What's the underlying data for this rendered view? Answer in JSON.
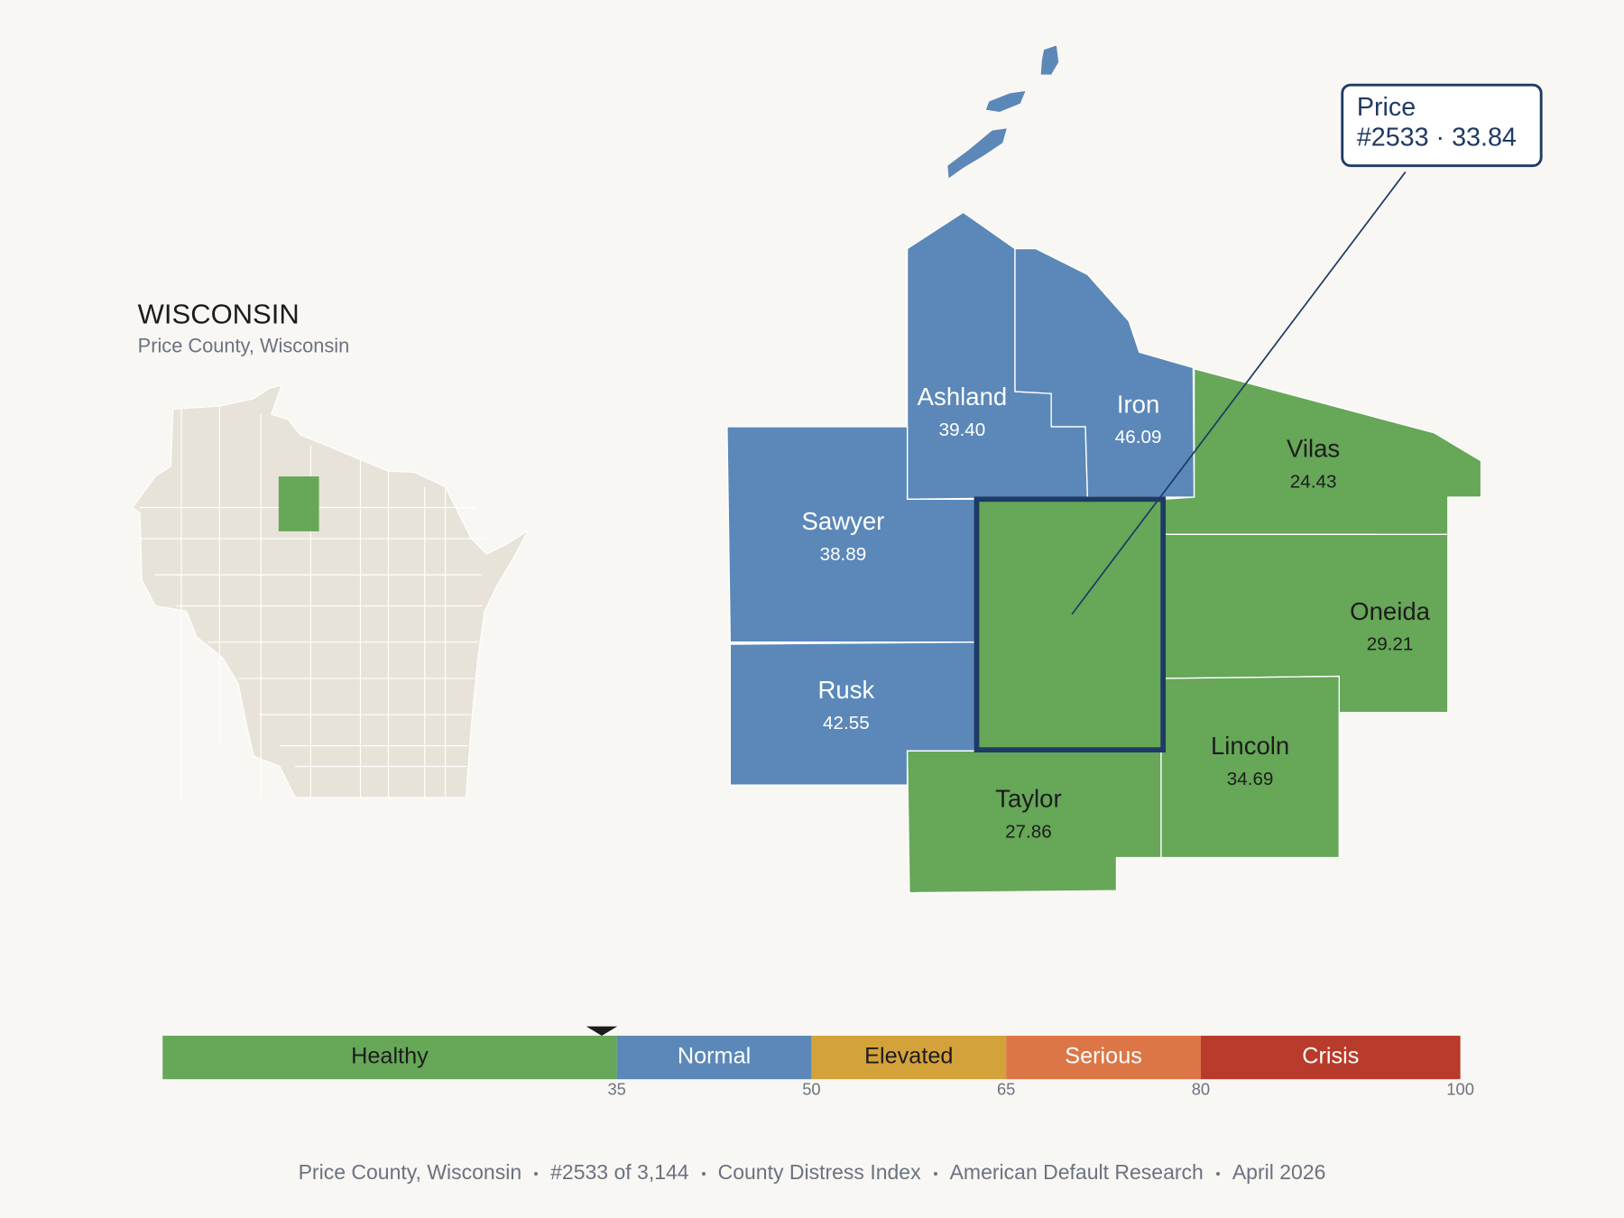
{
  "header": {
    "title": "WISCONSIN",
    "subtitle": "Price County, Wisconsin"
  },
  "selected": {
    "name": "Price",
    "label": "#2533 · 33.84",
    "score": 33.84
  },
  "counties": [
    {
      "name": "Ashland",
      "score": 39.4,
      "score_label": "39.40"
    },
    {
      "name": "Iron",
      "score": 46.09,
      "score_label": "46.09"
    },
    {
      "name": "Sawyer",
      "score": 38.89,
      "score_label": "38.89"
    },
    {
      "name": "Rusk",
      "score": 42.55,
      "score_label": "42.55"
    },
    {
      "name": "Vilas",
      "score": 24.43,
      "score_label": "24.43"
    },
    {
      "name": "Oneida",
      "score": 29.21,
      "score_label": "29.21"
    },
    {
      "name": "Lincoln",
      "score": 34.69,
      "score_label": "34.69"
    },
    {
      "name": "Taylor",
      "score": 27.86,
      "score_label": "27.86"
    }
  ],
  "scale": {
    "xlim": [
      0,
      100
    ],
    "xticks": [
      35,
      50,
      65,
      80,
      100
    ],
    "bands": [
      {
        "label": "Healthy",
        "color": "#66a758",
        "text_color": "#1c1c1c"
      },
      {
        "label": "Normal",
        "color": "#5b88b8",
        "text_color": "#ffffff"
      },
      {
        "label": "Elevated",
        "color": "#d4a23a",
        "text_color": "#1c1c1c"
      },
      {
        "label": "Serious",
        "color": "#dc7646",
        "text_color": "#ffffff"
      },
      {
        "label": "Crisis",
        "color": "#b93b2c",
        "text_color": "#ffffff"
      }
    ]
  },
  "footer": [
    "Price County, Wisconsin",
    "#2533 of 3,144",
    "County Distress Index",
    "American Default Research",
    "April 2026"
  ]
}
